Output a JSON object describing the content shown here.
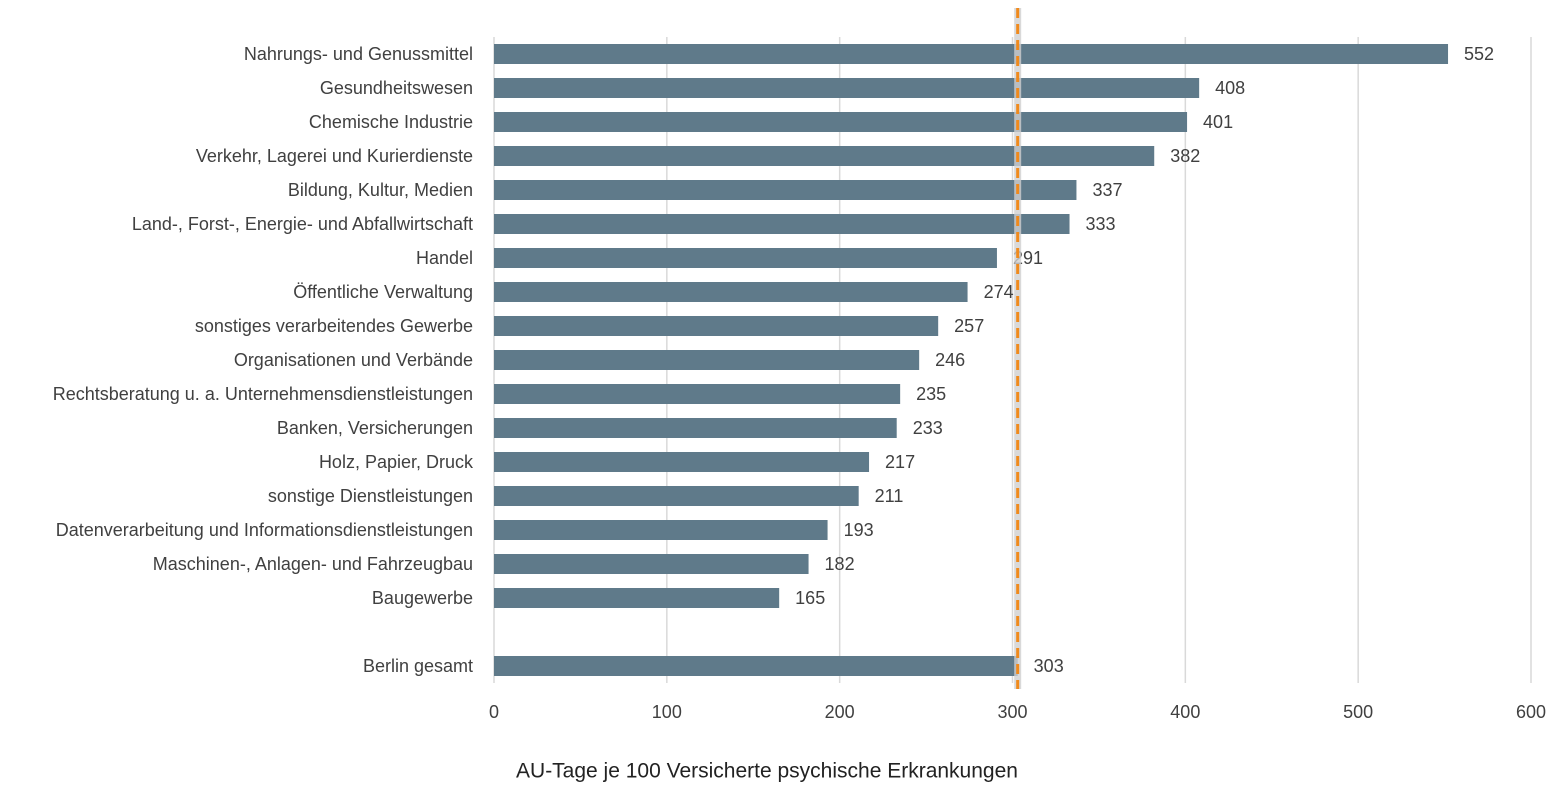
{
  "chart_data": {
    "type": "bar",
    "orientation": "horizontal",
    "categories": [
      "Nahrungs- und Genussmittel",
      "Gesundheitswesen",
      "Chemische Industrie",
      "Verkehr, Lagerei und Kurierdienste",
      "Bildung, Kultur, Medien",
      "Land-, Forst-,  Energie- und Abfallwirtschaft",
      "Handel",
      "Öffentliche Verwaltung",
      "sonstiges verarbeitendes Gewerbe",
      "Organisationen und Verbände",
      "Rechtsberatung u. a. Unternehmensdienstleistungen",
      "Banken, Versicherungen",
      "Holz, Papier, Druck",
      "sonstige Dienstleistungen",
      "Datenverarbeitung und Informationsdienstleistungen",
      "Maschinen-, Anlagen- und Fahrzeugbau",
      "Baugewerbe",
      null,
      "Berlin gesamt"
    ],
    "values": [
      552,
      408,
      401,
      382,
      337,
      333,
      291,
      274,
      257,
      246,
      235,
      233,
      217,
      211,
      193,
      182,
      165,
      null,
      303
    ],
    "color": "#5f7a8a",
    "xlim": [
      0,
      600
    ],
    "xticks": [
      0,
      100,
      200,
      300,
      400,
      500,
      600
    ],
    "xlabel": "AU-Tage je 100 Versicherte psychische Erkrankungen",
    "grid": true,
    "reference_line_color": "#f08a1c"
  }
}
